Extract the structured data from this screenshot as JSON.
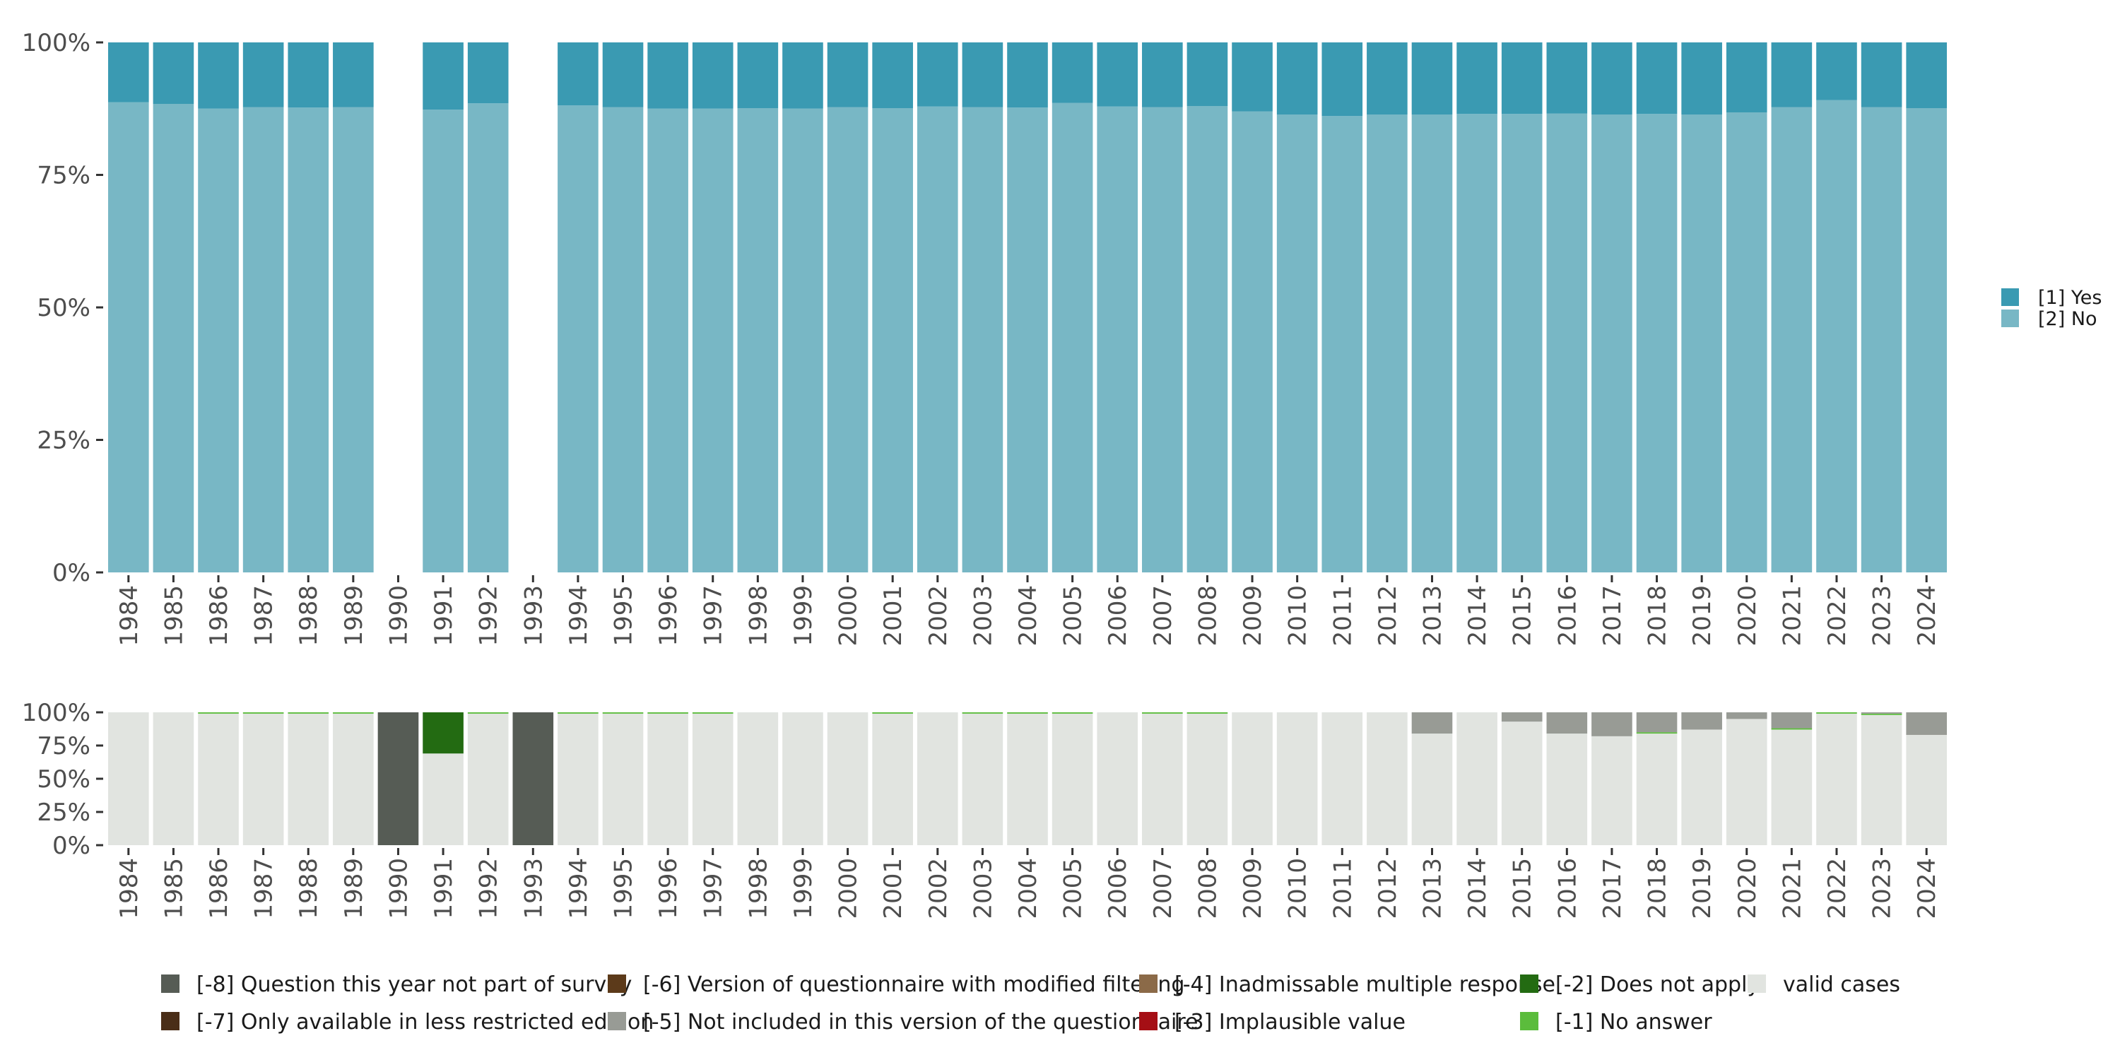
{
  "chart_data": [
    {
      "type": "bar",
      "stacked": true,
      "percent_scale": true,
      "categories": [
        "1984",
        "1985",
        "1986",
        "1987",
        "1988",
        "1989",
        "1990",
        "1991",
        "1992",
        "1993",
        "1994",
        "1995",
        "1996",
        "1997",
        "1998",
        "1999",
        "2000",
        "2001",
        "2002",
        "2003",
        "2004",
        "2005",
        "2006",
        "2007",
        "2008",
        "2009",
        "2010",
        "2011",
        "2012",
        "2013",
        "2014",
        "2015",
        "2016",
        "2017",
        "2018",
        "2019",
        "2020",
        "2021",
        "2022",
        "2023",
        "2024"
      ],
      "ylim": [
        0,
        1
      ],
      "y_ticks": [
        "0%",
        "25%",
        "50%",
        "75%",
        "100%"
      ],
      "legend_position": "right",
      "grid": false,
      "series": [
        {
          "name": "[2] No",
          "color": "#78b7c5",
          "values": [
            0.887,
            0.884,
            0.875,
            0.878,
            0.877,
            0.878,
            null,
            0.873,
            0.885,
            null,
            0.881,
            0.878,
            0.875,
            0.875,
            0.876,
            0.875,
            0.878,
            0.876,
            0.879,
            0.878,
            0.877,
            0.886,
            0.879,
            0.878,
            0.88,
            0.87,
            0.864,
            0.861,
            0.864,
            0.864,
            0.865,
            0.865,
            0.866,
            0.864,
            0.865,
            0.864,
            0.868,
            0.878,
            0.891,
            0.878,
            0.876
          ]
        },
        {
          "name": "[1] Yes",
          "color": "#3a9ab2",
          "values": [
            0.113,
            0.116,
            0.125,
            0.122,
            0.123,
            0.122,
            null,
            0.127,
            0.115,
            null,
            0.119,
            0.122,
            0.125,
            0.125,
            0.124,
            0.125,
            0.122,
            0.124,
            0.121,
            0.122,
            0.123,
            0.114,
            0.121,
            0.122,
            0.12,
            0.13,
            0.136,
            0.139,
            0.136,
            0.136,
            0.135,
            0.135,
            0.134,
            0.136,
            0.135,
            0.136,
            0.132,
            0.122,
            0.109,
            0.122,
            0.124
          ]
        }
      ]
    },
    {
      "type": "bar",
      "stacked": true,
      "percent_scale": true,
      "categories": [
        "1984",
        "1985",
        "1986",
        "1987",
        "1988",
        "1989",
        "1990",
        "1991",
        "1992",
        "1993",
        "1994",
        "1995",
        "1996",
        "1997",
        "1998",
        "1999",
        "2000",
        "2001",
        "2002",
        "2003",
        "2004",
        "2005",
        "2006",
        "2007",
        "2008",
        "2009",
        "2010",
        "2011",
        "2012",
        "2013",
        "2014",
        "2015",
        "2016",
        "2017",
        "2018",
        "2019",
        "2020",
        "2021",
        "2022",
        "2023",
        "2024"
      ],
      "ylim": [
        0,
        1
      ],
      "y_ticks": [
        "0%",
        "25%",
        "50%",
        "75%",
        "100%"
      ],
      "legend_position": "bottom",
      "grid": false,
      "series": [
        {
          "name": "valid cases",
          "color": "#e1e4e0",
          "values": [
            1,
            1,
            0.99,
            0.99,
            0.99,
            0.99,
            0,
            0.69,
            0.99,
            0,
            0.99,
            0.99,
            0.99,
            0.99,
            1,
            1,
            1,
            0.99,
            1,
            0.99,
            0.99,
            0.99,
            1,
            0.99,
            0.99,
            1,
            1,
            1,
            1,
            0.84,
            1,
            0.93,
            0.84,
            0.82,
            0.84,
            0.87,
            0.95,
            0.87,
            0.99,
            0.98,
            0.83
          ]
        },
        {
          "name": "[-1] No answer",
          "color": "#5bbc3c",
          "values": [
            0,
            0,
            0.01,
            0.01,
            0.01,
            0.01,
            0,
            0,
            0.01,
            0,
            0.01,
            0.01,
            0.01,
            0.01,
            0,
            0,
            0,
            0.01,
            0,
            0.01,
            0.01,
            0.01,
            0,
            0.01,
            0.01,
            0,
            0,
            0,
            0,
            0,
            0,
            0,
            0,
            0,
            0.01,
            0,
            0,
            0.01,
            0.01,
            0.01,
            0
          ]
        },
        {
          "name": "[-2] Does not apply",
          "color": "#236b12",
          "values": [
            0,
            0,
            0,
            0,
            0,
            0,
            0,
            0.31,
            0,
            0,
            0,
            0,
            0,
            0,
            0,
            0,
            0,
            0,
            0,
            0,
            0,
            0,
            0,
            0,
            0,
            0,
            0,
            0,
            0,
            0,
            0,
            0,
            0,
            0,
            0,
            0,
            0,
            0,
            0,
            0,
            0
          ]
        },
        {
          "name": "[-3] Implausible value",
          "color": "#a50f15",
          "values": [
            0,
            0,
            0,
            0,
            0,
            0,
            0,
            0,
            0,
            0,
            0,
            0,
            0,
            0,
            0,
            0,
            0,
            0,
            0,
            0,
            0,
            0,
            0,
            0,
            0,
            0,
            0,
            0,
            0,
            0,
            0,
            0,
            0,
            0,
            0,
            0,
            0,
            0,
            0,
            0,
            0
          ]
        },
        {
          "name": "[-4] Inadmissable multiple response",
          "color": "#8b6a48",
          "values": [
            0,
            0,
            0,
            0,
            0,
            0,
            0,
            0,
            0,
            0,
            0,
            0,
            0,
            0,
            0,
            0,
            0,
            0,
            0,
            0,
            0,
            0,
            0,
            0,
            0,
            0,
            0,
            0,
            0,
            0,
            0,
            0,
            0,
            0,
            0,
            0,
            0,
            0,
            0,
            0,
            0
          ]
        },
        {
          "name": "[-5] Not included in this version of the questionnaire",
          "color": "#989b95",
          "values": [
            0,
            0,
            0,
            0,
            0,
            0,
            0,
            0,
            0,
            0,
            0,
            0,
            0,
            0,
            0,
            0,
            0,
            0,
            0,
            0,
            0,
            0,
            0,
            0,
            0,
            0,
            0,
            0,
            0,
            0.16,
            0,
            0.07,
            0.16,
            0.18,
            0.15,
            0.13,
            0.05,
            0.12,
            0,
            0.01,
            0.17
          ]
        },
        {
          "name": "[-6] Version of questionnaire with modified filtering",
          "color": "#5c3a1a",
          "values": [
            0,
            0,
            0,
            0,
            0,
            0,
            0,
            0,
            0,
            0,
            0,
            0,
            0,
            0,
            0,
            0,
            0,
            0,
            0,
            0,
            0,
            0,
            0,
            0,
            0,
            0,
            0,
            0,
            0,
            0,
            0,
            0,
            0,
            0,
            0,
            0,
            0,
            0,
            0,
            0,
            0
          ]
        },
        {
          "name": "[-7] Only available in less restricted edition",
          "color": "#4a2e18",
          "values": [
            0,
            0,
            0,
            0,
            0,
            0,
            0,
            0,
            0,
            0,
            0,
            0,
            0,
            0,
            0,
            0,
            0,
            0,
            0,
            0,
            0,
            0,
            0,
            0,
            0,
            0,
            0,
            0,
            0,
            0,
            0,
            0,
            0,
            0,
            0,
            0,
            0,
            0,
            0,
            0,
            0
          ]
        },
        {
          "name": "[-8] Question this year not part of survey",
          "color": "#565c55",
          "values": [
            0,
            0,
            0,
            0,
            0,
            0,
            1,
            0,
            0,
            1,
            0,
            0,
            0,
            0,
            0,
            0,
            0,
            0,
            0,
            0,
            0,
            0,
            0,
            0,
            0,
            0,
            0,
            0,
            0,
            0,
            0,
            0,
            0,
            0,
            0,
            0,
            0,
            0,
            0,
            0,
            0
          ]
        }
      ]
    }
  ],
  "legend_top": [
    {
      "label": "[1] Yes",
      "color": "#3a9ab2"
    },
    {
      "label": "[2] No",
      "color": "#78b7c5"
    }
  ],
  "legend_bottom": [
    {
      "label": "[-8] Question this year not part of survey",
      "color": "#565c55"
    },
    {
      "label": "[-7] Only available in less restricted edition",
      "color": "#4a2e18"
    },
    {
      "label": "[-6] Version of questionnaire with modified filtering",
      "color": "#5c3a1a"
    },
    {
      "label": "[-5] Not included in this version of the questionnaire",
      "color": "#989b95"
    },
    {
      "label": "[-4] Inadmissable multiple response",
      "color": "#8b6a48"
    },
    {
      "label": "[-3] Implausible value",
      "color": "#a50f15"
    },
    {
      "label": "[-2] Does not apply",
      "color": "#236b12"
    },
    {
      "label": "[-1] No answer",
      "color": "#5bbc3c"
    },
    {
      "label": "valid cases",
      "color": "#e1e4e0"
    }
  ]
}
